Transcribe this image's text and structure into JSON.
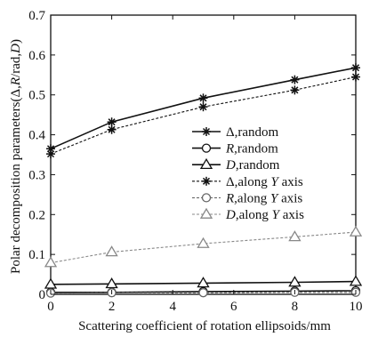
{
  "chart_data": {
    "type": "line",
    "title": "",
    "xlabel": "Scattering coefficient of rotation ellipsoids/mm",
    "ylabel": "Polar decomposition parameters(Δ,R/rad,D)",
    "xlim": [
      0,
      10
    ],
    "ylim": [
      0,
      0.7
    ],
    "xticks": [
      "0",
      "2",
      "4",
      "6",
      "8",
      "10"
    ],
    "yticks": [
      "0",
      "0.1",
      "0.2",
      "0.3",
      "0.4",
      "0.5",
      "0.6",
      "0.7"
    ],
    "grid": false,
    "legend_position": "center-right",
    "series": [
      {
        "name": "Δ,random",
        "label_parts": [
          "Δ,random"
        ],
        "marker": "asterisk",
        "dash": "solid",
        "color": "#111111",
        "x": [
          0,
          2,
          5,
          8,
          10
        ],
        "y": [
          0.365,
          0.432,
          0.492,
          0.538,
          0.568
        ]
      },
      {
        "name": "R,random",
        "label_parts": [
          "R",
          ",random"
        ],
        "marker": "circle",
        "dash": "solid",
        "color": "#111111",
        "x": [
          0,
          2,
          5,
          8,
          10
        ],
        "y": [
          0.005,
          0.005,
          0.007,
          0.008,
          0.009
        ]
      },
      {
        "name": "D,random",
        "label_parts": [
          "D",
          ",random"
        ],
        "marker": "triangle",
        "dash": "solid",
        "color": "#111111",
        "x": [
          0,
          2,
          5,
          8,
          10
        ],
        "y": [
          0.025,
          0.026,
          0.028,
          0.03,
          0.032
        ]
      },
      {
        "name": "Δ,along Y axis",
        "label_parts": [
          "Δ,along ",
          "Y",
          " axis"
        ],
        "marker": "asterisk",
        "dash": "dashed",
        "color": "#111111",
        "x": [
          0,
          2,
          5,
          8,
          10
        ],
        "y": [
          0.352,
          0.413,
          0.47,
          0.512,
          0.545
        ]
      },
      {
        "name": "R,along Y axis",
        "label_parts": [
          "R",
          ",along ",
          "Y",
          " axis"
        ],
        "marker": "circle",
        "dash": "dashed",
        "color": "#666666",
        "x": [
          0,
          2,
          5,
          8,
          10
        ],
        "y": [
          0.003,
          0.004,
          0.004,
          0.005,
          0.005
        ]
      },
      {
        "name": "D,along Y axis",
        "label_parts": [
          "D",
          ",along ",
          "Y",
          " axis"
        ],
        "marker": "triangle",
        "dash": "dashed",
        "color": "#888888",
        "x": [
          0,
          2,
          5,
          8,
          10
        ],
        "y": [
          0.079,
          0.106,
          0.127,
          0.144,
          0.156
        ]
      }
    ]
  }
}
